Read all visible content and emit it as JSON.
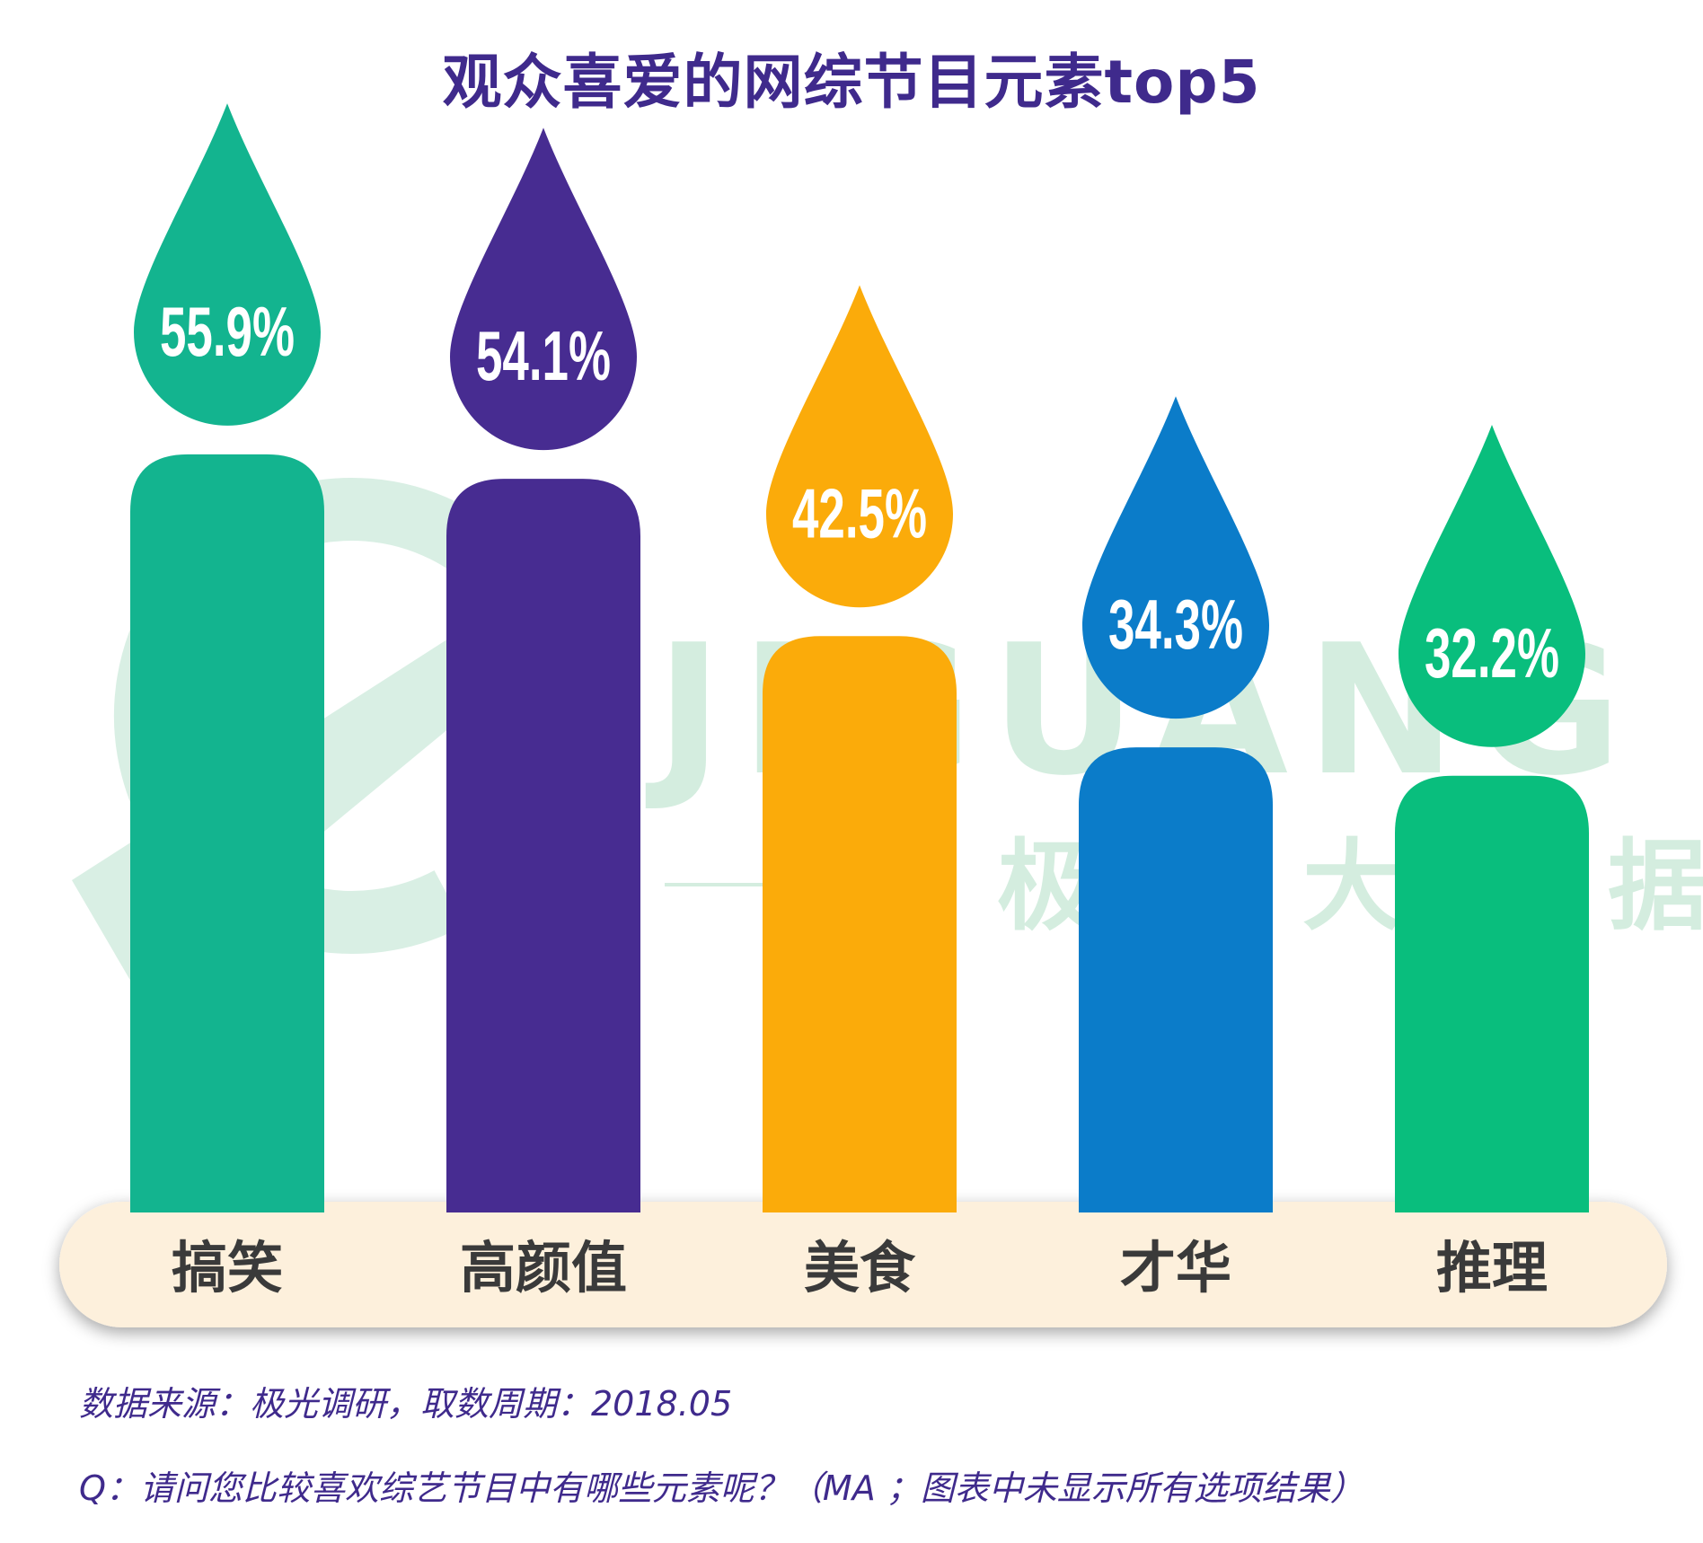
{
  "chart_data": {
    "type": "bar",
    "title": "观众喜爱的网综节目元素top5",
    "categories": [
      "搞笑",
      "高颜值",
      "美食",
      "才华",
      "推理"
    ],
    "values": [
      55.9,
      54.1,
      42.5,
      34.3,
      32.2
    ],
    "value_labels": [
      "55.9%",
      "54.1%",
      "42.5%",
      "34.3%",
      "32.2%"
    ],
    "unit": "%",
    "colors": [
      "#13b48f",
      "#472c91",
      "#fbab0a",
      "#0b7cc9",
      "#09be7d"
    ],
    "ylim": [
      0,
      60
    ],
    "grid": false,
    "legend": "none"
  },
  "watermark": {
    "brand": "JIGUANG",
    "cn": "极光大数据"
  },
  "footer": {
    "source": "数据来源：极光调研，取数周期：2018.05",
    "question": "Q：请问您比较喜欢综艺节目中有哪些元素呢？（MA ；图表中未显示所有选项结果）"
  },
  "colors": {
    "title": "#3f2a8c",
    "baseline": "#fdf0dc",
    "watermark": "#d2ece0"
  }
}
